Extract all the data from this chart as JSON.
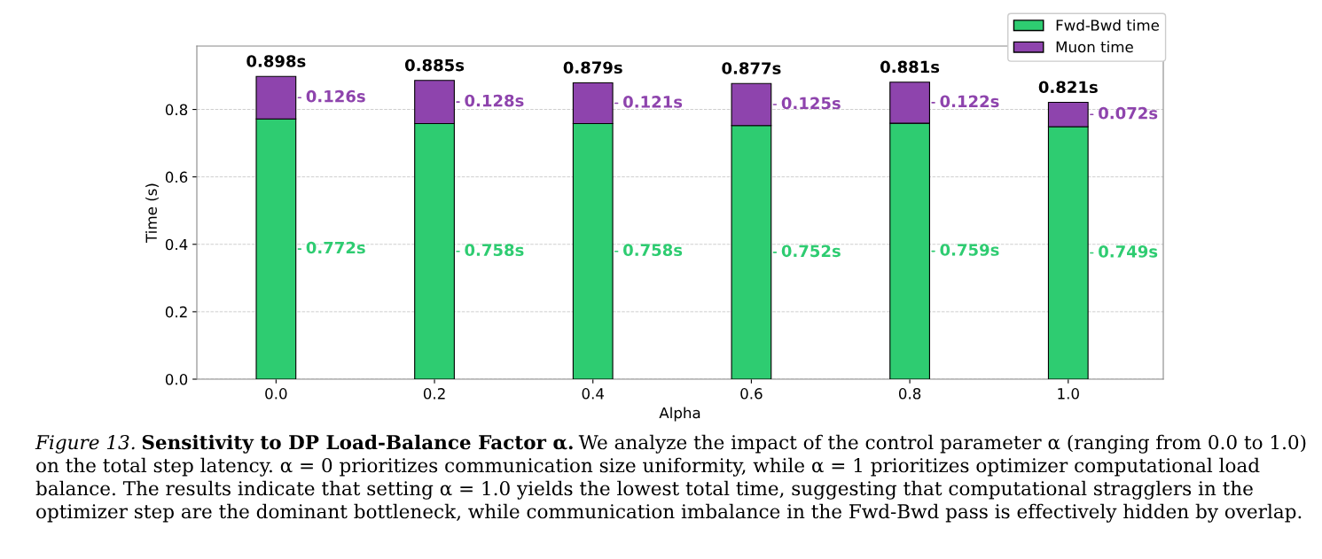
{
  "chart_data": {
    "type": "bar",
    "stacked": true,
    "xlabel": "Alpha",
    "ylabel": "Time (s)",
    "categories": [
      "0.0",
      "0.2",
      "0.4",
      "0.6",
      "0.8",
      "1.0"
    ],
    "series": [
      {
        "name": "Fwd-Bwd time",
        "color": "#2ecc71",
        "values": [
          0.772,
          0.758,
          0.758,
          0.752,
          0.759,
          0.749
        ],
        "value_labels": [
          "0.772s",
          "0.758s",
          "0.758s",
          "0.752s",
          "0.759s",
          "0.749s"
        ]
      },
      {
        "name": "Muon time",
        "color": "#8e44ad",
        "values": [
          0.126,
          0.128,
          0.121,
          0.125,
          0.122,
          0.072
        ],
        "value_labels": [
          "0.126s",
          "0.128s",
          "0.121s",
          "0.125s",
          "0.122s",
          "0.072s"
        ]
      }
    ],
    "totals": [
      "0.898s",
      "0.885s",
      "0.879s",
      "0.877s",
      "0.881s",
      "0.821s"
    ],
    "ylim": [
      0,
      0.988
    ],
    "yticks": [
      {
        "value": 0,
        "label": "0.0"
      },
      0.2,
      0.4,
      0.6,
      0.8
    ],
    "grid": "y",
    "legend": "top right",
    "annotations": [
      "Figure 13.",
      "Sensitivity to DP Load-Balance Factor α.",
      "We analyze the impact of the control parameter α (ranging from 0.0 to 1.0) on the total step latency. α = 0 prioritizes communication size uniformity, while α = 1 prioritizes optimizer computational load balance. The results indicate that setting α = 1.0 yields the lowest total time, suggesting that computational stragglers in the optimizer step are the dominant bottleneck, while communication imbalance in the Fwd-Bwd pass is effectively hidden by overlap."
    ]
  }
}
